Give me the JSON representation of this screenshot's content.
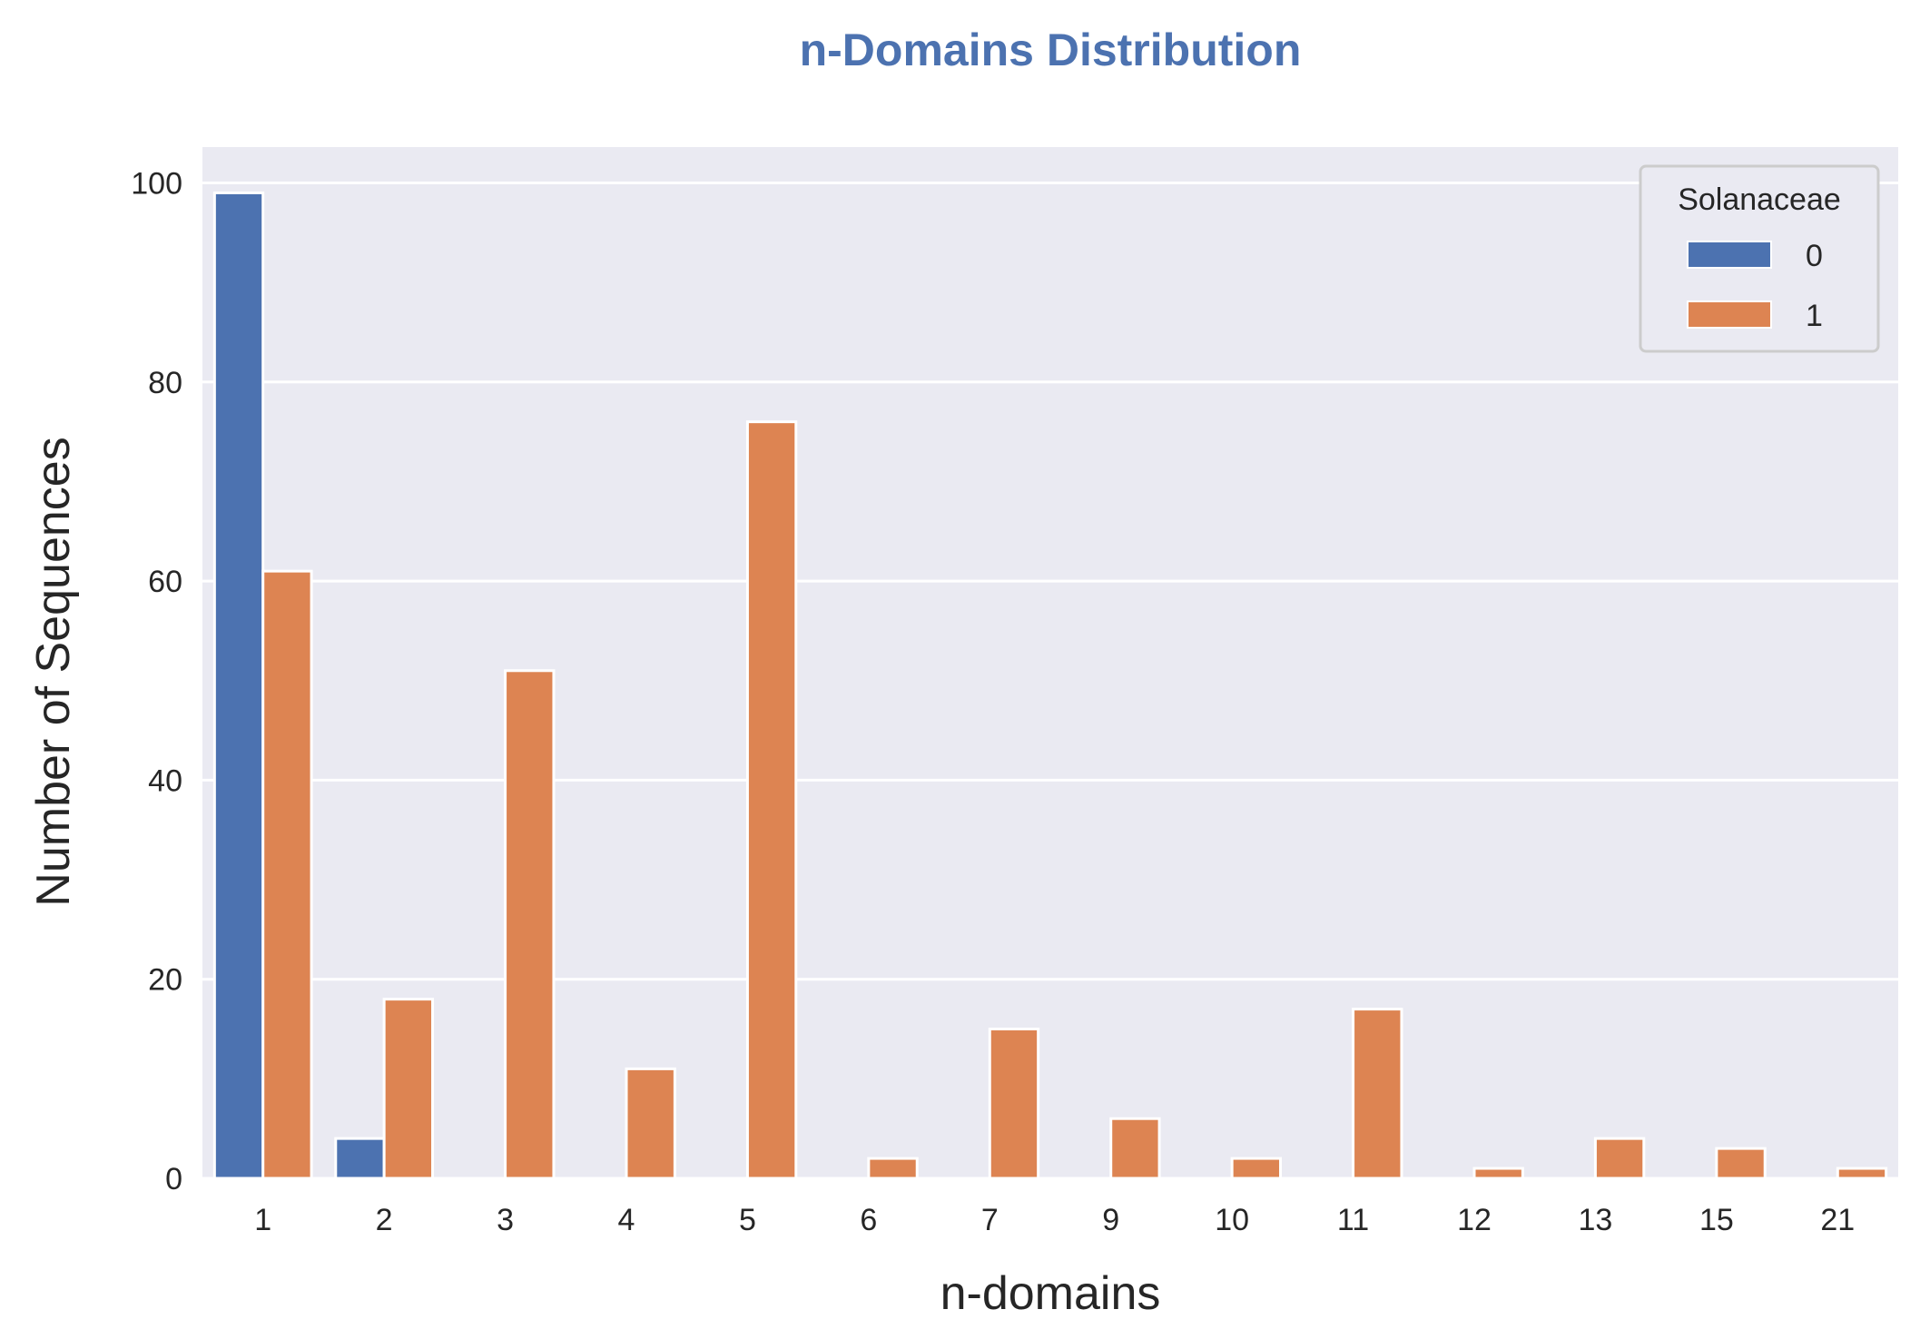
{
  "chart_data": {
    "type": "bar",
    "title": "n-Domains Distribution",
    "xlabel": "n-domains",
    "ylabel": "Number of Sequences",
    "categories": [
      "1",
      "2",
      "3",
      "4",
      "5",
      "6",
      "7",
      "9",
      "10",
      "11",
      "12",
      "13",
      "15",
      "21"
    ],
    "series": [
      {
        "name": "0",
        "color": "#4c72b0",
        "values": [
          99,
          4,
          0,
          0,
          0,
          0,
          0,
          0,
          0,
          0,
          0,
          0,
          0,
          0
        ]
      },
      {
        "name": "1",
        "color": "#dd8452",
        "values": [
          61,
          18,
          51,
          11,
          76,
          2,
          15,
          6,
          2,
          17,
          1,
          4,
          3,
          1
        ]
      }
    ],
    "ylim": [
      0,
      103.6
    ],
    "yticks": [
      0,
      20,
      40,
      60,
      80,
      100
    ],
    "grid": true,
    "legend": {
      "title": "Solanaceae",
      "placement": "top-right"
    },
    "plot_background": "#eaeaf2",
    "title_color": "#4c72b0"
  }
}
